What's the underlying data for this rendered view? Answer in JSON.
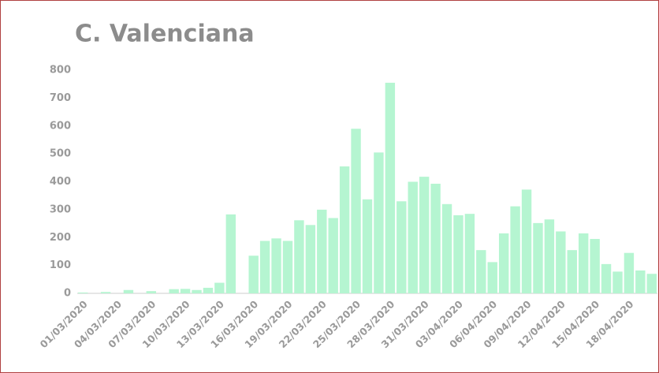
{
  "chart_data": {
    "type": "bar",
    "title": "C. Valenciana",
    "categories": [
      "01/03/2020",
      null,
      null,
      "04/03/2020",
      null,
      null,
      "07/03/2020",
      null,
      null,
      "10/03/2020",
      null,
      null,
      "13/03/2020",
      null,
      null,
      "16/03/2020",
      null,
      null,
      "19/03/2020",
      null,
      null,
      "22/03/2020",
      null,
      null,
      "25/03/2020",
      null,
      null,
      "28/03/2020",
      null,
      null,
      "31/03/2020",
      null,
      null,
      "03/04/2020",
      null,
      null,
      "06/04/2020",
      null,
      null,
      "09/04/2020",
      null,
      null,
      "12/04/2020",
      null,
      null,
      "15/04/2020",
      null,
      null,
      "18/04/2020",
      null,
      null
    ],
    "values": [
      3,
      0,
      5,
      0,
      12,
      0,
      8,
      0,
      15,
      16,
      12,
      20,
      38,
      283,
      0,
      135,
      188,
      197,
      188,
      262,
      245,
      300,
      270,
      455,
      590,
      337,
      505,
      755,
      330,
      400,
      418,
      393,
      320,
      280,
      285,
      155,
      112,
      215,
      312,
      372,
      252,
      265,
      222,
      155,
      215,
      195,
      105,
      78,
      145,
      82,
      70
    ],
    "color": "#b5f5d1",
    "ylim": [
      0,
      800
    ],
    "yticks": [
      0,
      100,
      200,
      300,
      400,
      500,
      600,
      700,
      800
    ],
    "grid": false
  }
}
